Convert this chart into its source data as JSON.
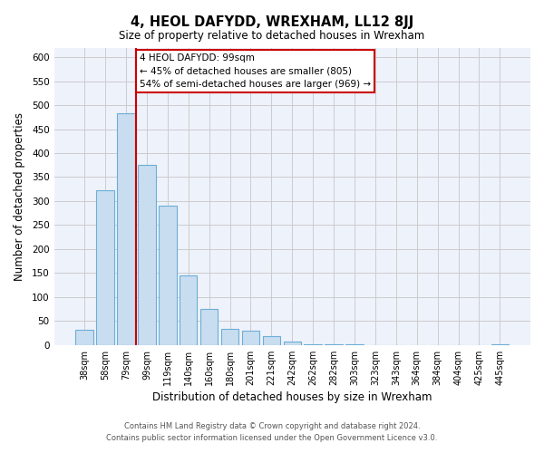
{
  "title": "4, HEOL DAFYDD, WREXHAM, LL12 8JJ",
  "subtitle": "Size of property relative to detached houses in Wrexham",
  "xlabel": "Distribution of detached houses by size in Wrexham",
  "ylabel": "Number of detached properties",
  "footer_line1": "Contains HM Land Registry data © Crown copyright and database right 2024.",
  "footer_line2": "Contains public sector information licensed under the Open Government Licence v3.0.",
  "bar_labels": [
    "38sqm",
    "58sqm",
    "79sqm",
    "99sqm",
    "119sqm",
    "140sqm",
    "160sqm",
    "180sqm",
    "201sqm",
    "221sqm",
    "242sqm",
    "262sqm",
    "282sqm",
    "303sqm",
    "323sqm",
    "343sqm",
    "364sqm",
    "384sqm",
    "404sqm",
    "425sqm",
    "445sqm"
  ],
  "bar_values": [
    32,
    322,
    483,
    375,
    291,
    145,
    76,
    34,
    30,
    18,
    7,
    2,
    1,
    1,
    0,
    0,
    0,
    0,
    0,
    0,
    2
  ],
  "bar_color": "#c9ddf0",
  "bar_edge_color": "#6baed6",
  "pct_smaller": 45,
  "n_smaller": 805,
  "pct_larger_semi": 54,
  "n_larger_semi": 969,
  "vline_color": "#cc0000",
  "annotation_box_edge": "#cc0000",
  "ylim": [
    0,
    620
  ],
  "yticks": [
    0,
    50,
    100,
    150,
    200,
    250,
    300,
    350,
    400,
    450,
    500,
    550,
    600
  ],
  "grid_color": "#cccccc",
  "background_color": "#ffffff",
  "plot_bg_color": "#eef2fb"
}
